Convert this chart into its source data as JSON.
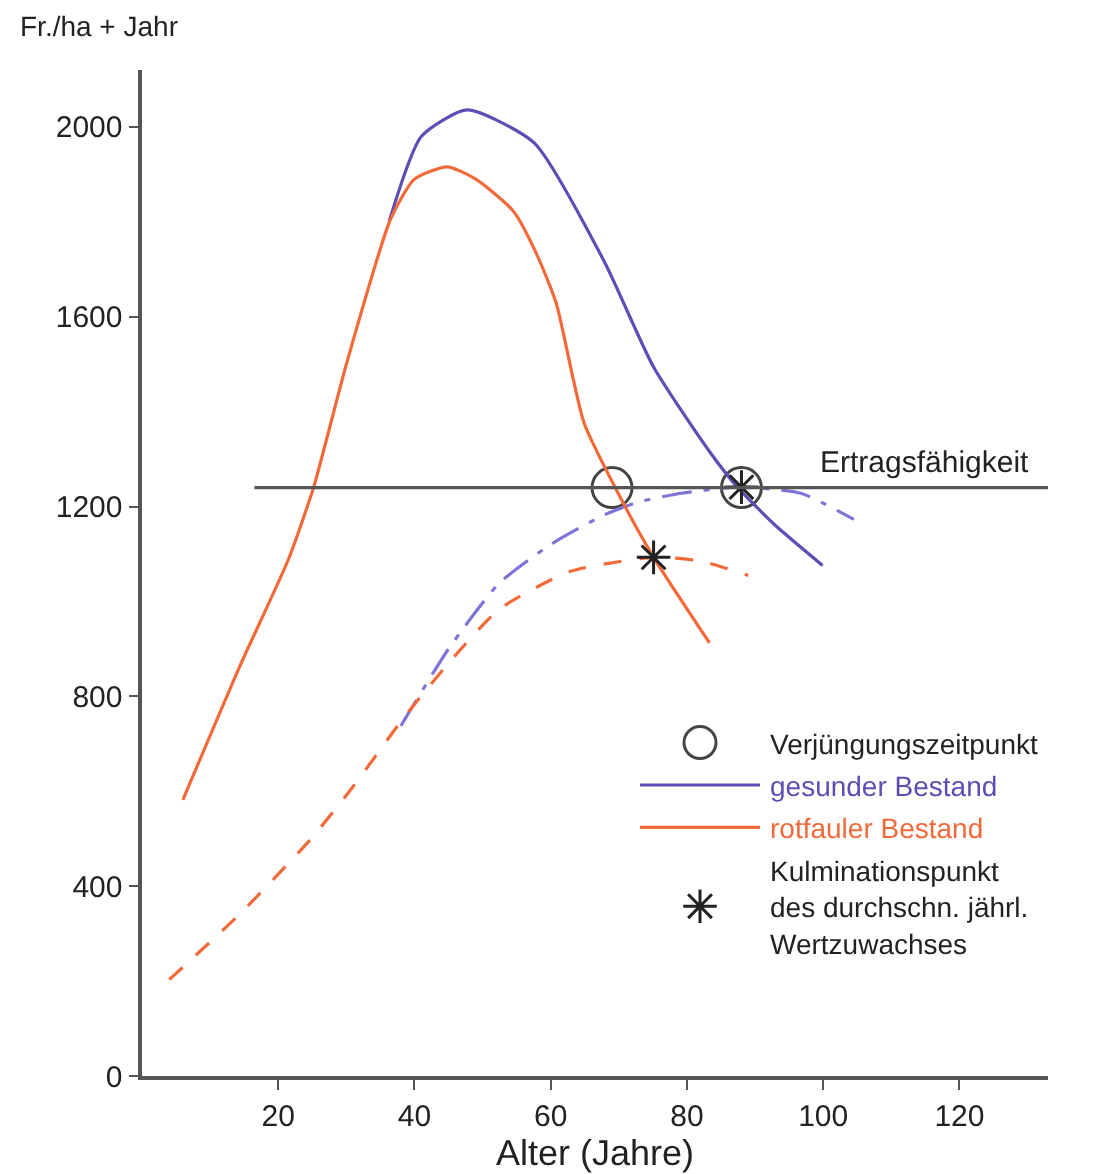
{
  "chart_data": {
    "type": "line",
    "ylabel": "Fr./ha + Jahr",
    "xlabel": "Alter (Jahre)",
    "xlim": [
      0,
      133
    ],
    "xticks": [
      20,
      40,
      60,
      80,
      100,
      120
    ],
    "ylim": [
      0,
      2120
    ],
    "yticks": [
      0,
      400,
      800,
      1200,
      1600,
      2000
    ],
    "grid": false,
    "legend": "bottom right",
    "annotations": [
      {
        "text": "Ertragsfähigkeit",
        "x": 115,
        "y": 1240
      }
    ],
    "series": [
      {
        "name": "Verjüngungszeitpunkt",
        "type": "scatter",
        "marker": "circle",
        "color": "#444444",
        "x": [
          69,
          88
        ],
        "values": [
          1240,
          1240
        ]
      },
      {
        "name": "gesunder Bestand",
        "marker": "none",
        "line_style": "solid",
        "color": "#5b4fb5",
        "x": [
          36.3,
          41,
          47.7,
          57.6,
          67.8,
          75.1,
          83.3,
          87.4,
          93,
          99.9
        ],
        "values": [
          1802,
          1980,
          2036,
          1966,
          1718,
          1494,
          1316,
          1241,
          1160,
          1076
        ]
      },
      {
        "marker": "none",
        "line_style": "dashdot",
        "color": "#7d74d6",
        "x": [
          38,
          45,
          52.4,
          60,
          67.8,
          73,
          79.2,
          87.4,
          96.7,
          104.5
        ],
        "values": [
          738,
          900,
          1038,
          1120,
          1182,
          1210,
          1228,
          1241,
          1228,
          1173
        ]
      },
      {
        "name": "rotfauler Bestand",
        "marker": "none",
        "line_style": "solid",
        "color": "#f26a3a",
        "x": [
          6,
          14.4,
          21.5,
          25.2,
          30,
          36.5,
          40,
          44.8,
          49,
          54.5,
          58,
          60.8,
          64.9,
          69.9,
          75.1,
          83.3
        ],
        "values": [
          582,
          865,
          1089,
          1241,
          1500,
          1806,
          1890,
          1916,
          1890,
          1823,
          1730,
          1629,
          1376,
          1228,
          1093,
          913
        ]
      },
      {
        "marker": "none",
        "line_style": "dashed",
        "color": "#f26a3a",
        "x": [
          4,
          14.4,
          24.7,
          31,
          38,
          45,
          52.4,
          62.8,
          75.1,
          82,
          89
        ],
        "values": [
          203,
          342,
          498,
          610,
          747,
          870,
          983,
          1063,
          1093,
          1085,
          1055
        ]
      },
      {
        "name": "Kulminationspunkt\ndes durchschn. jährl.\nWertzuwachses",
        "type": "scatter",
        "marker": "cross",
        "color": "#222222",
        "x": [
          75.1,
          88
        ],
        "values": [
          1093,
          1241
        ]
      },
      {
        "marker": "none",
        "line_style": "solid",
        "color": "#555555",
        "x": [
          16.5,
          133
        ],
        "values": [
          1240,
          1240
        ]
      }
    ]
  }
}
